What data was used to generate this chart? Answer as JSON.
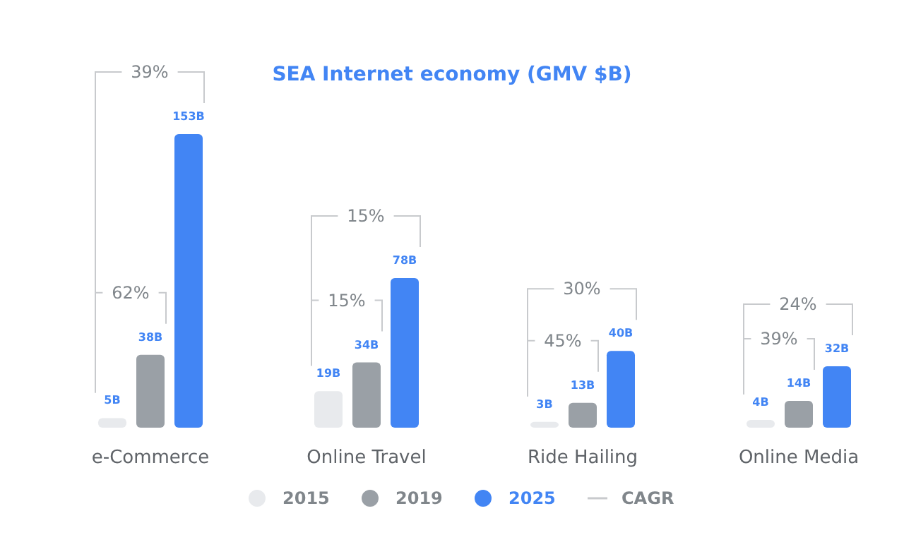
{
  "chart_data": {
    "type": "bar",
    "title": "SEA Internet economy (GMV $B)",
    "categories": [
      "e-Commerce",
      "Online Travel",
      "Ride Hailing",
      "Online Media"
    ],
    "series": [
      {
        "name": "2015",
        "color": "#e8eaed",
        "values": [
          5,
          19,
          3,
          4
        ],
        "value_labels": [
          "5B",
          "19B",
          "3B",
          "4B"
        ]
      },
      {
        "name": "2019",
        "color": "#9aa0a6",
        "values": [
          38,
          34,
          13,
          14
        ],
        "value_labels": [
          "38B",
          "34B",
          "13B",
          "14B"
        ]
      },
      {
        "name": "2025",
        "color": "#4285f4",
        "values": [
          153,
          78,
          40,
          32
        ],
        "value_labels": [
          "153B",
          "78B",
          "40B",
          "32B"
        ]
      }
    ],
    "annotations": [
      "39%",
      "62%",
      "15%",
      "15%",
      "30%",
      "45%",
      "24%",
      "39%",
      "CAGR"
    ],
    "legend": "bottom",
    "grid": false
  }
}
